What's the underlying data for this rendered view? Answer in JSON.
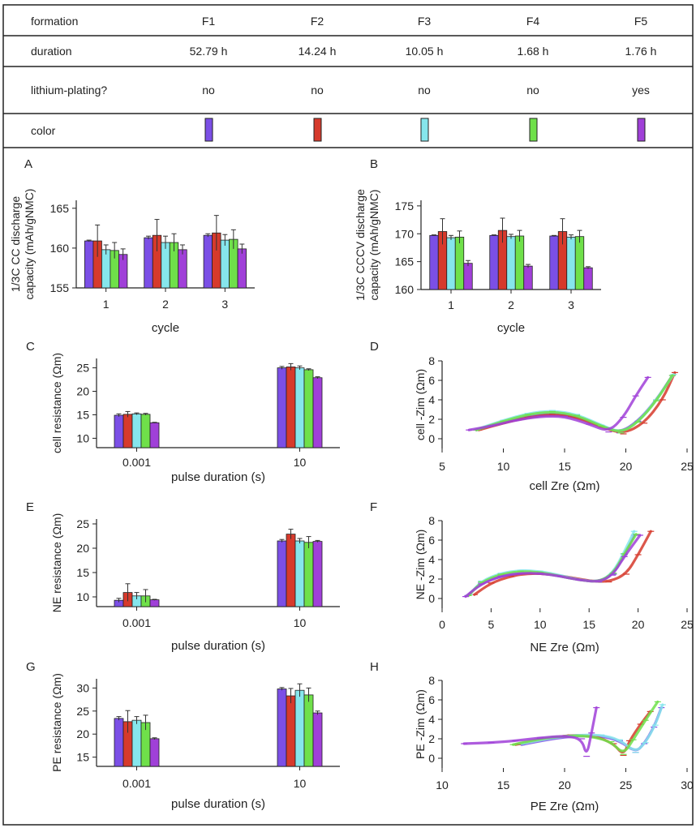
{
  "table": {
    "rows": [
      {
        "label": "formation",
        "values": [
          "F1",
          "F2",
          "F3",
          "F4",
          "F5"
        ]
      },
      {
        "label": "duration",
        "values": [
          "52.79 h",
          "14.24 h",
          "10.05 h",
          "1.68 h",
          "1.76 h"
        ]
      },
      {
        "label": "lithium-plating?",
        "values": [
          "no",
          "no",
          "no",
          "no",
          "yes"
        ]
      },
      {
        "label": "color",
        "swatches": true
      }
    ]
  },
  "colors": {
    "F1": "#7b4fe6",
    "F2": "#d63a2c",
    "F3": "#86e6ec",
    "F4": "#6fe04a",
    "F5": "#a040d8"
  },
  "chart_data": [
    {
      "id": "A",
      "panel_label": "A",
      "type": "bar",
      "ylabel": "1/3C CC discharge\ncapacity (mAh/gNMC)",
      "xlabel": "cycle",
      "categories": [
        "1",
        "2",
        "3"
      ],
      "ylim": [
        155,
        166
      ],
      "yticks": [
        155,
        160,
        165
      ],
      "series": [
        {
          "name": "F1",
          "values": [
            160.9,
            161.3,
            161.6
          ],
          "err": [
            0.1,
            0.2,
            0.2
          ]
        },
        {
          "name": "F2",
          "values": [
            160.9,
            161.6,
            161.9
          ],
          "err": [
            2.0,
            2.0,
            2.2
          ]
        },
        {
          "name": "F3",
          "values": [
            159.8,
            160.7,
            161.0
          ],
          "err": [
            0.6,
            0.8,
            0.7
          ]
        },
        {
          "name": "F4",
          "values": [
            159.7,
            160.7,
            161.1
          ],
          "err": [
            1.0,
            1.1,
            1.2
          ]
        },
        {
          "name": "F5",
          "values": [
            159.2,
            159.8,
            159.9
          ],
          "err": [
            0.7,
            0.6,
            0.6
          ]
        }
      ]
    },
    {
      "id": "B",
      "panel_label": "B",
      "type": "bar",
      "ylabel": "1/3C CCCV discharge\ncapacity (mAh/gNMC)",
      "xlabel": "cycle",
      "categories": [
        "1",
        "2",
        "3"
      ],
      "ylim": [
        160,
        176
      ],
      "yticks": [
        160,
        165,
        170,
        175
      ],
      "series": [
        {
          "name": "F1",
          "values": [
            169.7,
            169.7,
            169.6
          ],
          "err": [
            0.1,
            0.1,
            0.1
          ]
        },
        {
          "name": "F2",
          "values": [
            170.4,
            170.6,
            170.4
          ],
          "err": [
            2.3,
            2.2,
            2.3
          ]
        },
        {
          "name": "F3",
          "values": [
            169.3,
            169.5,
            169.4
          ],
          "err": [
            0.4,
            0.4,
            0.4
          ]
        },
        {
          "name": "F4",
          "values": [
            169.4,
            169.6,
            169.5
          ],
          "err": [
            1.1,
            1.0,
            1.1
          ]
        },
        {
          "name": "F5",
          "values": [
            164.7,
            164.2,
            163.9
          ],
          "err": [
            0.5,
            0.3,
            0.2
          ]
        }
      ]
    },
    {
      "id": "C",
      "panel_label": "C",
      "type": "bar",
      "ylabel": "cell resistance (Ωm)",
      "xlabel": "pulse duration (s)",
      "categories": [
        "0.001",
        "10"
      ],
      "ylim": [
        8,
        27
      ],
      "yticks": [
        10,
        15,
        20,
        25
      ],
      "series": [
        {
          "name": "F1",
          "values": [
            14.9,
            25.0
          ],
          "err": [
            0.3,
            0.3
          ]
        },
        {
          "name": "F2",
          "values": [
            15.1,
            25.2
          ],
          "err": [
            0.6,
            0.7
          ]
        },
        {
          "name": "F3",
          "values": [
            15.2,
            25.0
          ],
          "err": [
            0.2,
            0.4
          ]
        },
        {
          "name": "F4",
          "values": [
            15.1,
            24.6
          ],
          "err": [
            0.2,
            0.2
          ]
        },
        {
          "name": "F5",
          "values": [
            13.3,
            22.9
          ],
          "err": [
            0.1,
            0.2
          ]
        }
      ]
    },
    {
      "id": "D",
      "panel_label": "D",
      "type": "line",
      "xlabel": "cell Zre (Ωm)",
      "ylabel": "cell -Zim (Ωm)",
      "xlim": [
        5,
        25
      ],
      "ylim": [
        -1,
        8
      ],
      "xticks": [
        5,
        10,
        15,
        20,
        25
      ],
      "yticks": [
        0,
        2,
        4,
        6,
        8
      ],
      "series": [
        {
          "name": "F1",
          "x": [
            7.8,
            10,
            12,
            14,
            16,
            18,
            19.5,
            21,
            22.5,
            23.8
          ],
          "y": [
            0.9,
            1.7,
            2.3,
            2.6,
            2.3,
            1.3,
            0.6,
            1.8,
            4,
            6.5
          ]
        },
        {
          "name": "F2",
          "x": [
            8,
            10,
            12,
            14,
            16,
            18,
            19.8,
            21.5,
            23,
            24
          ],
          "y": [
            0.9,
            1.6,
            2.2,
            2.5,
            2.2,
            1.2,
            0.5,
            1.6,
            4,
            6.8
          ]
        },
        {
          "name": "F3",
          "x": [
            7.9,
            10,
            12,
            14,
            16,
            18,
            19.6,
            21,
            22.5,
            23.9
          ],
          "y": [
            1,
            1.9,
            2.6,
            2.9,
            2.5,
            1.4,
            0.6,
            1.7,
            4,
            6.6
          ]
        },
        {
          "name": "F4",
          "x": [
            7.8,
            10,
            12,
            14,
            16,
            18,
            19.6,
            21,
            22.5,
            23.8
          ],
          "y": [
            0.9,
            1.8,
            2.5,
            2.8,
            2.4,
            1.3,
            0.6,
            1.7,
            3.9,
            6.5
          ]
        },
        {
          "name": "F5",
          "x": [
            7.2,
            9,
            11,
            13,
            15,
            17,
            18.6,
            19.8,
            20.8,
            21.8
          ],
          "y": [
            0.9,
            1.3,
            1.9,
            2.3,
            2.3,
            1.5,
            0.7,
            2.2,
            4.4,
            6.3
          ]
        }
      ]
    },
    {
      "id": "E",
      "panel_label": "E",
      "type": "bar",
      "ylabel": "NE resistance (Ωm)",
      "xlabel": "pulse duration (s)",
      "categories": [
        "0.001",
        "10"
      ],
      "ylim": [
        8,
        26
      ],
      "yticks": [
        10,
        15,
        20,
        25
      ],
      "series": [
        {
          "name": "F1",
          "values": [
            9.3,
            21.5
          ],
          "err": [
            0.4,
            0.3
          ]
        },
        {
          "name": "F2",
          "values": [
            10.9,
            22.9
          ],
          "err": [
            1.8,
            1.0
          ]
        },
        {
          "name": "F3",
          "values": [
            10.2,
            21.5
          ],
          "err": [
            0.7,
            0.5
          ]
        },
        {
          "name": "F4",
          "values": [
            10.2,
            21.2
          ],
          "err": [
            1.3,
            1.2
          ]
        },
        {
          "name": "F5",
          "values": [
            9.4,
            21.4
          ],
          "err": [
            0.1,
            0.2
          ]
        }
      ]
    },
    {
      "id": "F",
      "panel_label": "F",
      "type": "line",
      "xlabel": "NE Zre (Ωm)",
      "ylabel": "NE -Zim (Ωm)",
      "xlim": [
        0,
        25
      ],
      "ylim": [
        -1,
        8
      ],
      "xticks": [
        0,
        5,
        10,
        15,
        20,
        25
      ],
      "yticks": [
        0,
        2,
        4,
        6,
        8
      ],
      "series": [
        {
          "name": "F1",
          "x": [
            2.6,
            4,
            6,
            8,
            10,
            12,
            14,
            16,
            17.5,
            18.6,
            19.6
          ],
          "y": [
            0.3,
            1.6,
            2.3,
            2.6,
            2.6,
            2.3,
            1.9,
            1.7,
            2.5,
            4.5,
            6.5
          ]
        },
        {
          "name": "F2",
          "x": [
            3.3,
            5,
            7,
            9,
            11,
            13,
            15,
            17,
            18.8,
            20,
            21.3
          ],
          "y": [
            0.4,
            1.6,
            2.3,
            2.6,
            2.5,
            2.2,
            1.8,
            1.7,
            2.5,
            4.5,
            6.9
          ]
        },
        {
          "name": "F3",
          "x": [
            2.8,
            4,
            6,
            8,
            10,
            12,
            14,
            16,
            17.4,
            18.5,
            19.6
          ],
          "y": [
            0.4,
            1.8,
            2.6,
            2.9,
            2.8,
            2.4,
            1.9,
            1.7,
            2.6,
            4.6,
            6.9
          ]
        },
        {
          "name": "F4",
          "x": [
            2.7,
            4,
            6,
            8,
            10,
            12,
            14,
            16,
            17.5,
            18.6,
            19.8
          ],
          "y": [
            0.3,
            1.7,
            2.5,
            2.8,
            2.7,
            2.3,
            1.9,
            1.7,
            2.6,
            4.6,
            6.6
          ]
        },
        {
          "name": "F5",
          "x": [
            2.4,
            4,
            6,
            8,
            10,
            12,
            14,
            16,
            17.4,
            18.6,
            20.2
          ],
          "y": [
            0.2,
            1.5,
            2.3,
            2.6,
            2.6,
            2.3,
            1.9,
            1.7,
            2.4,
            4.3,
            6.5
          ]
        }
      ]
    },
    {
      "id": "G",
      "panel_label": "G",
      "type": "bar",
      "ylabel": "PE resistance (Ωm)",
      "xlabel": "pulse duration (s)",
      "categories": [
        "0.001",
        "10"
      ],
      "ylim": [
        13,
        32
      ],
      "yticks": [
        15,
        20,
        25,
        30
      ],
      "series": [
        {
          "name": "F1",
          "values": [
            23.4,
            29.8
          ],
          "err": [
            0.4,
            0.3
          ]
        },
        {
          "name": "F2",
          "values": [
            22.7,
            28.3
          ],
          "err": [
            2.4,
            1.6
          ]
        },
        {
          "name": "F3",
          "values": [
            23.0,
            29.5
          ],
          "err": [
            0.8,
            1.4
          ]
        },
        {
          "name": "F4",
          "values": [
            22.5,
            28.5
          ],
          "err": [
            1.6,
            1.5
          ]
        },
        {
          "name": "F5",
          "values": [
            19.0,
            24.6
          ],
          "err": [
            0.2,
            0.4
          ]
        }
      ]
    },
    {
      "id": "H",
      "panel_label": "H",
      "type": "line",
      "xlabel": "PE Zre (Ωm)",
      "ylabel": "PE -Zim (Ωm)",
      "xlim": [
        10,
        30
      ],
      "ylim": [
        -1,
        8
      ],
      "xticks": [
        10,
        15,
        20,
        25,
        30
      ],
      "yticks": [
        0,
        2,
        4,
        6,
        8
      ],
      "series": [
        {
          "name": "F1",
          "x": [
            16.5,
            19,
            21,
            23,
            24.5,
            25.8,
            26.5,
            27.3,
            27.9
          ],
          "y": [
            1.4,
            2,
            2.3,
            2.3,
            1.8,
            0.6,
            1.5,
            3.2,
            5.2
          ]
        },
        {
          "name": "F2",
          "x": [
            16,
            18.5,
            20.5,
            22.5,
            24,
            24.8,
            25.3,
            26.2,
            27
          ],
          "y": [
            1.4,
            2,
            2.4,
            2.3,
            1.5,
            0.3,
            1.8,
            3.5,
            4.8
          ]
        },
        {
          "name": "F3",
          "x": [
            16.5,
            19,
            21,
            23,
            24.5,
            25.8,
            26.6,
            27.4,
            28
          ],
          "y": [
            1.5,
            2.1,
            2.4,
            2.4,
            1.9,
            0.6,
            1.6,
            3.4,
            5.5
          ]
        },
        {
          "name": "F4",
          "x": [
            15.8,
            18,
            20,
            22,
            23.8,
            24.8,
            25.6,
            26.6,
            27.6
          ],
          "y": [
            1.4,
            2,
            2.3,
            2.3,
            1.7,
            0.4,
            1.9,
            3.9,
            5.8
          ]
        },
        {
          "name": "F5",
          "x": [
            11.8,
            14,
            16,
            18,
            20,
            21.4,
            21.8,
            22.2,
            22.6
          ],
          "y": [
            1.5,
            1.6,
            1.8,
            2.1,
            2.3,
            2,
            0.2,
            2.6,
            5.2
          ]
        }
      ]
    }
  ]
}
